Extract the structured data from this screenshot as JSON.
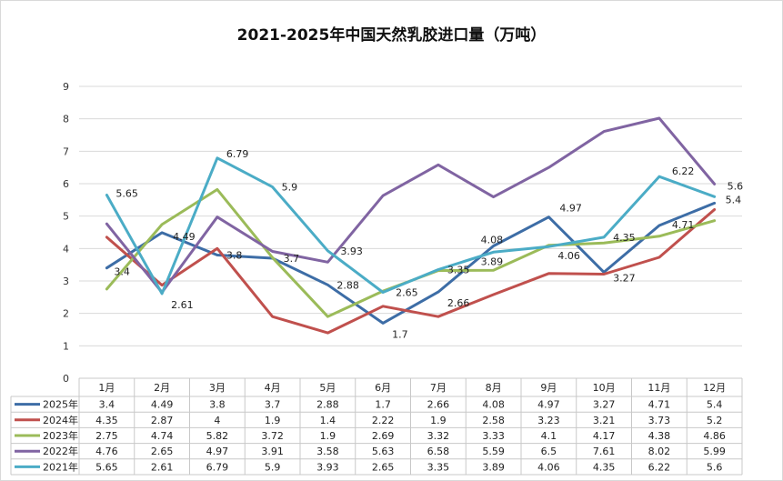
{
  "chart_data": {
    "type": "line",
    "title": "2021-2025年中国天然乳胶进口量（万吨）",
    "categories": [
      "1月",
      "2月",
      "3月",
      "4月",
      "5月",
      "6月",
      "7月",
      "8月",
      "9月",
      "10月",
      "11月",
      "12月"
    ],
    "ylim": [
      0,
      9
    ],
    "yticks": [
      0,
      1,
      2,
      3,
      4,
      5,
      6,
      7,
      8,
      9
    ],
    "grid": true,
    "legend": "data-table-bottom",
    "series": [
      {
        "name": "2025年",
        "color": "#3d6da6",
        "values": [
          3.4,
          4.49,
          3.8,
          3.7,
          2.88,
          1.7,
          2.66,
          4.08,
          4.97,
          3.27,
          4.71,
          5.4
        ]
      },
      {
        "name": "2024年",
        "color": "#c0504d",
        "values": [
          4.35,
          2.87,
          4,
          1.9,
          1.4,
          2.22,
          1.9,
          2.58,
          3.23,
          3.21,
          3.73,
          5.2
        ]
      },
      {
        "name": "2023年",
        "color": "#9bbb59",
        "values": [
          2.75,
          4.74,
          5.82,
          3.72,
          1.9,
          2.69,
          3.32,
          3.33,
          4.1,
          4.17,
          4.38,
          4.86
        ]
      },
      {
        "name": "2022年",
        "color": "#8064a2",
        "values": [
          4.76,
          2.65,
          4.97,
          3.91,
          3.58,
          5.63,
          6.58,
          5.59,
          6.5,
          7.61,
          8.02,
          5.99
        ]
      },
      {
        "name": "2021年",
        "color": "#4bacc6",
        "values": [
          5.65,
          2.61,
          6.79,
          5.9,
          3.93,
          2.65,
          3.35,
          3.89,
          4.06,
          4.35,
          6.22,
          5.6
        ]
      }
    ],
    "data_labels": [
      {
        "series": 0,
        "index": 0,
        "text": "3.4"
      },
      {
        "series": 0,
        "index": 1,
        "text": "4.49"
      },
      {
        "series": 0,
        "index": 2,
        "text": "3.8"
      },
      {
        "series": 0,
        "index": 3,
        "text": "3.7"
      },
      {
        "series": 0,
        "index": 4,
        "text": "2.88"
      },
      {
        "series": 0,
        "index": 5,
        "text": "1.7"
      },
      {
        "series": 0,
        "index": 6,
        "text": "2.66"
      },
      {
        "series": 0,
        "index": 7,
        "text": "4.08"
      },
      {
        "series": 0,
        "index": 8,
        "text": "4.97"
      },
      {
        "series": 0,
        "index": 9,
        "text": "3.27"
      },
      {
        "series": 0,
        "index": 10,
        "text": "4.71"
      },
      {
        "series": 0,
        "index": 11,
        "text": "5.4"
      },
      {
        "series": 4,
        "index": 0,
        "text": "5.65"
      },
      {
        "series": 4,
        "index": 1,
        "text": "2.61"
      },
      {
        "series": 4,
        "index": 2,
        "text": "6.79"
      },
      {
        "series": 4,
        "index": 3,
        "text": "5.9"
      },
      {
        "series": 4,
        "index": 4,
        "text": "3.93"
      },
      {
        "series": 4,
        "index": 5,
        "text": "2.65"
      },
      {
        "series": 4,
        "index": 6,
        "text": "3.35"
      },
      {
        "series": 4,
        "index": 7,
        "text": "3.89"
      },
      {
        "series": 4,
        "index": 8,
        "text": "4.06"
      },
      {
        "series": 4,
        "index": 9,
        "text": "4.35"
      },
      {
        "series": 4,
        "index": 10,
        "text": "6.22"
      },
      {
        "series": 4,
        "index": 11,
        "text": "5.6"
      }
    ]
  }
}
